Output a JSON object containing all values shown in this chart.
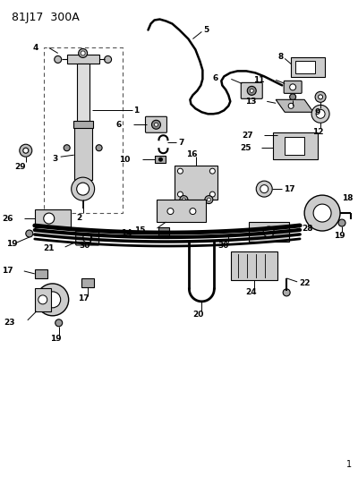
{
  "title": "81J17  300A",
  "bg_color": "#ffffff",
  "line_color": "#000000",
  "fig_width": 4.0,
  "fig_height": 5.33,
  "dpi": 100
}
